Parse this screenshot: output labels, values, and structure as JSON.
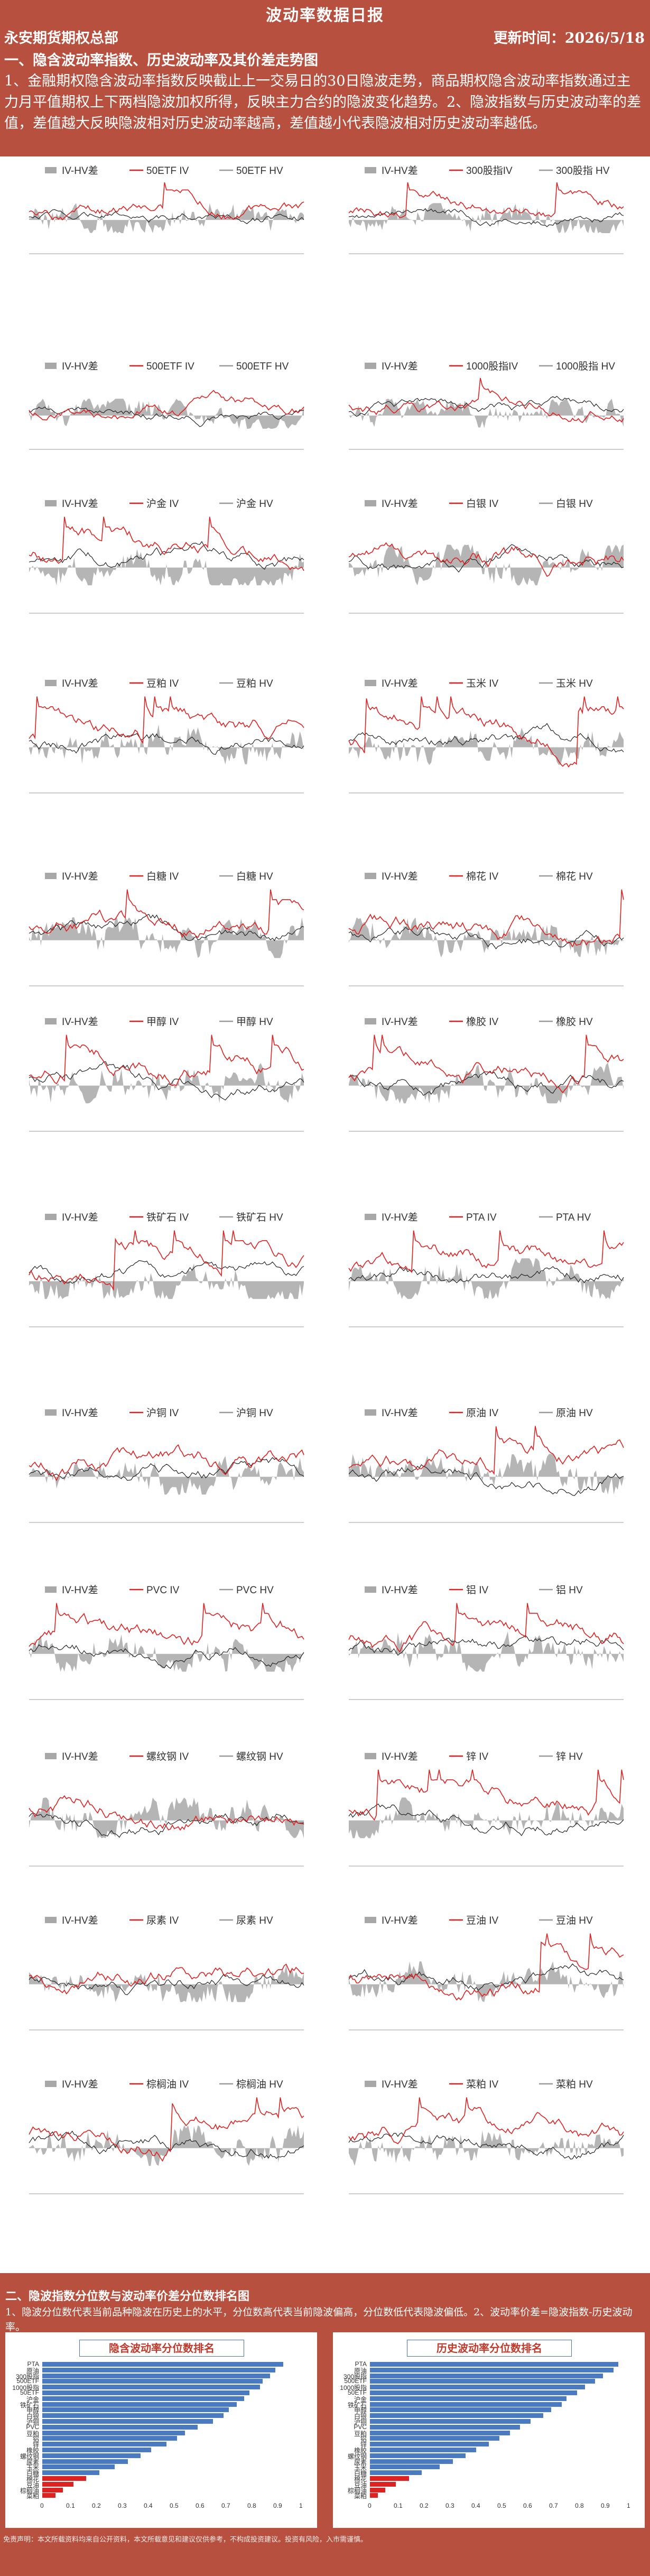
{
  "report": {
    "title": "波动率数据日报",
    "org": "永安期货期权总部",
    "update_label": "更新时间：",
    "update_date": "2026/5/18",
    "section1": "一、隐含波动率指数、历史波动率及其价差走势图",
    "section1_desc": "1、金融期权隐含波动率指数反映截止上一交易日的30日隐波走势，商品期权隐含波动率指数通过主力月平值期权上下两档隐波加权所得，反映主力合约的隐波变化趋势。2、隐波指数与历史波动率的差值，差值越大反映隐波相对历史波动率越高，差值越小代表隐波相对历史波动率越低。",
    "section2": "二、隐波指数分位数与波动率价差分位数排名图",
    "section2_desc": "1、隐波分位数代表当前品种隐波在历史上的水平，分位数高代表当前隐波偏高，分位数低代表隐波偏低。2、波动率价差=隐波指数-历史波动率。",
    "rank_left_title": "隐含波动率分位数排名",
    "rank_right_title": "历史波动率分位数排名",
    "disclaimer": "免责声明：本文所载资料均来自公开资料，本文所载意见和建议仅供参考，不构成投资建议。投资有风险，入市需谨慎。"
  },
  "colors": {
    "header_bg": "#b8503f",
    "iv_line": "#e02020",
    "hv_line": "#222222",
    "spread_area": "#a8a8a8",
    "rank_bar": "#4a7bc0"
  },
  "charts": [
    {
      "iv": "50ETF IV",
      "hv": "50ETF HV",
      "spread": "IV-HV差"
    },
    {
      "iv": "300股指IV",
      "hv": "300股指 HV",
      "spread": "IV-HV差"
    },
    {
      "iv": "500ETF IV",
      "hv": "500ETF HV",
      "spread": "IV-HV差"
    },
    {
      "iv": "1000股指IV",
      "hv": "1000股指 HV",
      "spread": "IV-HV差"
    },
    {
      "iv": "沪金 IV",
      "hv": "沪金 HV",
      "spread": "IV-HV差"
    },
    {
      "iv": "白银 IV",
      "hv": "白银 HV",
      "spread": "IV-HV差"
    },
    {
      "iv": "豆粕 IV",
      "hv": "豆粕 HV",
      "spread": "IV-HV差"
    },
    {
      "iv": "玉米 IV",
      "hv": "玉米 HV",
      "spread": "IV-HV差"
    },
    {
      "iv": "白糖 IV",
      "hv": "白糖 HV",
      "spread": "IV-HV差"
    },
    {
      "iv": "棉花 IV",
      "hv": "棉花 HV",
      "spread": "IV-HV差"
    },
    {
      "iv": "甲醇 IV",
      "hv": "甲醇 HV",
      "spread": "IV-HV差"
    },
    {
      "iv": "橡胶 IV",
      "hv": "橡胶 HV",
      "spread": "IV-HV差"
    },
    {
      "iv": "铁矿石 IV",
      "hv": "铁矿石 HV",
      "spread": "IV-HV差"
    },
    {
      "iv": "PTA IV",
      "hv": "PTA HV",
      "spread": "IV-HV差"
    },
    {
      "iv": "沪铜 IV",
      "hv": "沪铜 HV",
      "spread": "IV-HV差"
    },
    {
      "iv": "原油 IV",
      "hv": "原油 HV",
      "spread": "IV-HV差"
    },
    {
      "iv": "PVC IV",
      "hv": "PVC HV",
      "spread": "IV-HV差"
    },
    {
      "iv": "铝 IV",
      "hv": "铝 HV",
      "spread": "IV-HV差"
    },
    {
      "iv": "螺纹钢 IV",
      "hv": "螺纹钢 HV",
      "spread": "IV-HV差"
    },
    {
      "iv": "锌 IV",
      "hv": "锌 HV",
      "spread": "IV-HV差"
    },
    {
      "iv": "尿素 IV",
      "hv": "尿素 HV",
      "spread": "IV-HV差"
    },
    {
      "iv": "豆油 IV",
      "hv": "豆油 HV",
      "spread": "IV-HV差"
    },
    {
      "iv": "棕榈油 IV",
      "hv": "棕榈油 HV",
      "spread": "IV-HV差"
    },
    {
      "iv": "菜粕 IV",
      "hv": "菜粕 HV",
      "spread": "IV-HV差"
    }
  ],
  "rank_axis_ticks": [
    "0",
    "0.1",
    "0.2",
    "0.3",
    "0.4",
    "0.5",
    "0.6",
    "0.7",
    "0.8",
    "0.9",
    "1"
  ],
  "rank_left": {
    "labels": [
      "PTA",
      "原油",
      "300股指",
      "500ETF",
      "1000股指",
      "50ETF",
      "沪金",
      "铁矿石",
      "甲醇",
      "白银",
      "沪铜",
      "PVC",
      "豆粕",
      "铝",
      "锌",
      "橡胶",
      "螺纹钢",
      "尿素",
      "玉米",
      "白糖",
      "棉花",
      "豆油",
      "棕榈油",
      "菜粕"
    ],
    "values": [
      0.93,
      0.9,
      0.88,
      0.85,
      0.84,
      0.8,
      0.78,
      0.75,
      0.72,
      0.7,
      0.66,
      0.6,
      0.55,
      0.52,
      0.48,
      0.42,
      0.38,
      0.33,
      0.28,
      0.22,
      0.17,
      0.12,
      0.08,
      0.05
    ]
  },
  "rank_right": {
    "labels": [
      "PTA",
      "原油",
      "300股指",
      "500ETF",
      "1000股指",
      "50ETF",
      "沪金",
      "铁矿石",
      "甲醇",
      "白银",
      "沪铜",
      "PVC",
      "豆粕",
      "铝",
      "锌",
      "橡胶",
      "螺纹钢",
      "尿素",
      "玉米",
      "白糖",
      "棉花",
      "豆油",
      "棕榈油",
      "菜粕"
    ],
    "values": [
      0.96,
      0.94,
      0.9,
      0.87,
      0.83,
      0.8,
      0.76,
      0.74,
      0.7,
      0.67,
      0.62,
      0.58,
      0.54,
      0.5,
      0.46,
      0.41,
      0.37,
      0.32,
      0.27,
      0.2,
      0.15,
      0.1,
      0.06,
      0.03
    ]
  }
}
